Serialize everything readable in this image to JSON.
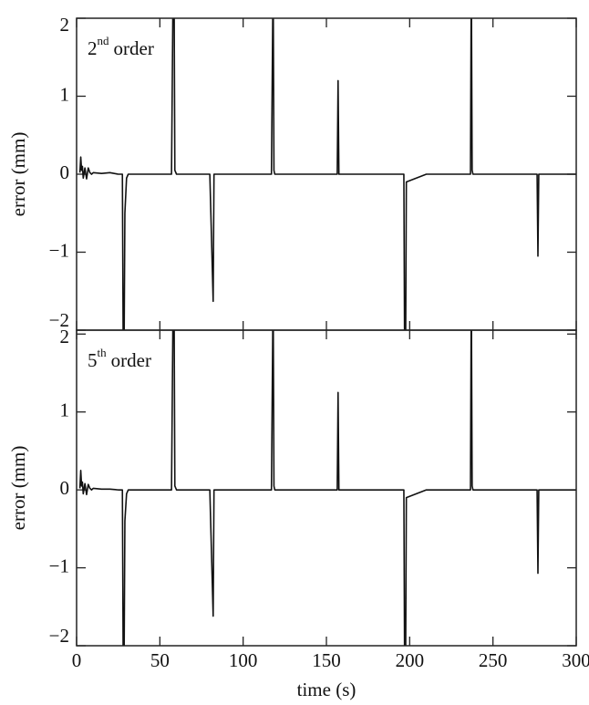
{
  "chart_data": [
    {
      "type": "line",
      "label": {
        "main": "2",
        "sup": "nd",
        "rest": "order"
      },
      "ylabel": "error (mm)",
      "x": [
        2,
        2.5,
        3,
        3.5,
        4,
        5,
        6,
        7,
        8,
        9,
        10,
        15,
        20,
        25,
        27.5,
        28,
        28.5,
        29,
        30,
        31,
        35,
        40,
        50,
        57,
        58,
        58.5,
        59,
        60,
        70,
        80,
        82,
        82.5,
        83,
        90,
        100,
        110,
        117,
        118,
        118.5,
        119,
        130,
        140,
        150,
        156.5,
        157,
        157.5,
        170,
        180,
        190,
        196.5,
        197,
        197.5,
        198,
        210,
        220,
        230,
        236.5,
        237,
        237.5,
        238,
        250,
        260,
        270,
        276.5,
        277,
        277.5,
        290,
        300
      ],
      "series": [
        {
          "color": "#111111",
          "values": [
            0.02,
            0.22,
            0.05,
            0.1,
            -0.05,
            0.08,
            -0.06,
            0.08,
            0.02,
            0,
            0.02,
            0.01,
            0.02,
            0,
            0,
            -2.3,
            -2.3,
            -0.5,
            -0.05,
            0,
            0,
            0,
            0,
            0,
            2.6,
            2.6,
            0.05,
            0,
            0,
            0,
            -1.63,
            0,
            0,
            0,
            0,
            0,
            0,
            2.6,
            0.05,
            0,
            0,
            0,
            0,
            0,
            1.2,
            0,
            0,
            0,
            0,
            0,
            -2.5,
            -2.5,
            -0.1,
            0,
            0,
            0,
            0,
            2.6,
            0.05,
            0,
            0,
            0,
            0,
            0,
            -1.05,
            0,
            0,
            0
          ]
        }
      ],
      "xlim": [
        0,
        300
      ],
      "xticks": [
        0,
        50,
        100,
        150,
        200,
        250,
        300
      ],
      "ylim": [
        -2,
        2
      ],
      "yticks": [
        {
          "value": -2,
          "label": "−2"
        },
        {
          "value": -1,
          "label": "−1"
        },
        0,
        1,
        2
      ]
    },
    {
      "type": "line",
      "label": {
        "main": "5",
        "sup": "th",
        "rest": "order"
      },
      "ylabel": "error (mm)",
      "xlabel": "time (s)",
      "x": [
        2,
        2.5,
        3,
        3.5,
        4,
        5,
        6,
        7,
        8,
        9,
        10,
        15,
        20,
        25,
        27.5,
        28,
        28.5,
        29,
        30,
        31,
        35,
        40,
        50,
        57,
        58,
        58.5,
        59,
        60,
        70,
        80,
        82,
        82.5,
        83,
        90,
        100,
        110,
        117,
        118,
        118.5,
        119,
        130,
        140,
        150,
        156.5,
        157,
        157.5,
        170,
        180,
        190,
        196.5,
        197,
        197.5,
        198,
        210,
        220,
        230,
        236.5,
        237,
        237.5,
        238,
        250,
        260,
        270,
        276.5,
        277,
        277.5,
        290,
        300
      ],
      "series": [
        {
          "color": "#111111",
          "values": [
            0.02,
            0.25,
            0.05,
            0.1,
            -0.05,
            0.08,
            -0.06,
            0.07,
            0.02,
            0,
            0.02,
            0.01,
            0.01,
            0,
            0,
            -2.3,
            -2.3,
            -0.4,
            -0.05,
            0,
            0,
            0,
            0,
            0,
            2.6,
            2.6,
            0.05,
            0,
            0,
            0,
            -1.62,
            0,
            0,
            0,
            0,
            0,
            0,
            2.6,
            0.05,
            0,
            0,
            0,
            0,
            0,
            1.25,
            0,
            0,
            0,
            0,
            0,
            -2.5,
            -2.5,
            -0.1,
            0,
            0,
            0,
            0,
            2.6,
            0.05,
            0,
            0,
            0,
            0,
            0,
            -1.07,
            0,
            0,
            0
          ]
        }
      ],
      "xlim": [
        0,
        300
      ],
      "xticks": [
        0,
        50,
        100,
        150,
        200,
        250,
        300
      ],
      "ylim": [
        -2,
        2.05
      ],
      "yticks": [
        {
          "value": -2,
          "label": "−2"
        },
        {
          "value": -1,
          "label": "−1"
        },
        0,
        1,
        2
      ]
    }
  ]
}
